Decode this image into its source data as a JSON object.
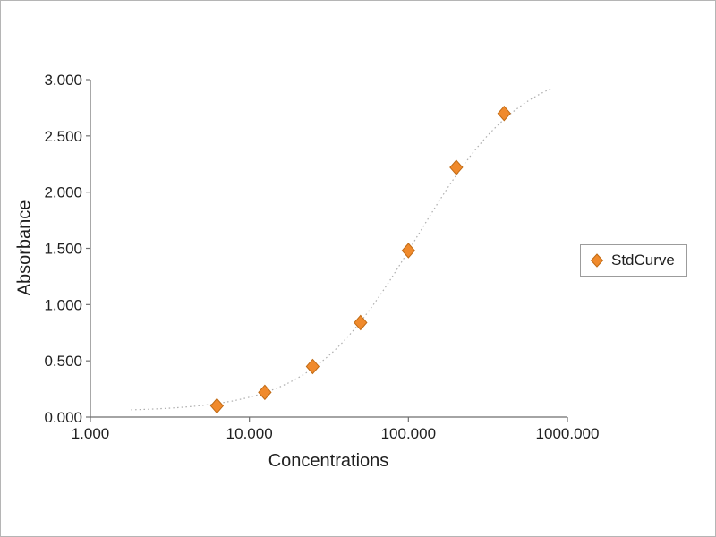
{
  "chart_data": {
    "type": "scatter",
    "title": "",
    "xlabel": "Concentrations",
    "ylabel": "Absorbance",
    "x_scale": "log",
    "xlim": [
      1,
      1000
    ],
    "ylim": [
      0,
      3
    ],
    "grid": "off",
    "x_ticks": [
      {
        "value": 1,
        "label": "1.000"
      },
      {
        "value": 10,
        "label": "10.000"
      },
      {
        "value": 100,
        "label": "100.000"
      },
      {
        "value": 1000,
        "label": "1000.000"
      }
    ],
    "y_ticks": [
      {
        "value": 0,
        "label": "0.000"
      },
      {
        "value": 0.5,
        "label": "0.500"
      },
      {
        "value": 1,
        "label": "1.000"
      },
      {
        "value": 1.5,
        "label": "1.500"
      },
      {
        "value": 2,
        "label": "2.000"
      },
      {
        "value": 2.5,
        "label": "2.500"
      },
      {
        "value": 3,
        "label": "3.000"
      }
    ],
    "series": [
      {
        "name": "StdCurve",
        "marker": "diamond",
        "color": "#F08A2C",
        "edge_color": "#C06A14",
        "x": [
          6.25,
          12.5,
          25,
          50,
          100,
          200,
          400
        ],
        "y": [
          0.1,
          0.22,
          0.45,
          0.84,
          1.48,
          2.22,
          2.7
        ]
      }
    ],
    "fit_curve": {
      "style": "dotted",
      "color": "#ADADAD",
      "x_range": [
        1.8,
        800
      ],
      "params": {
        "bottom": 0.05,
        "top": 3.15,
        "ec50": 113,
        "hill": 1.3
      }
    },
    "legend": {
      "position": "right-middle",
      "entries": [
        "StdCurve"
      ]
    }
  },
  "colors": {
    "background": "#FFFFFF",
    "axis": "#6E6E6E",
    "tick_text": "#1F1F1F",
    "outer_border": "#B5B5B5",
    "legend_border": "#9C9C9C"
  }
}
